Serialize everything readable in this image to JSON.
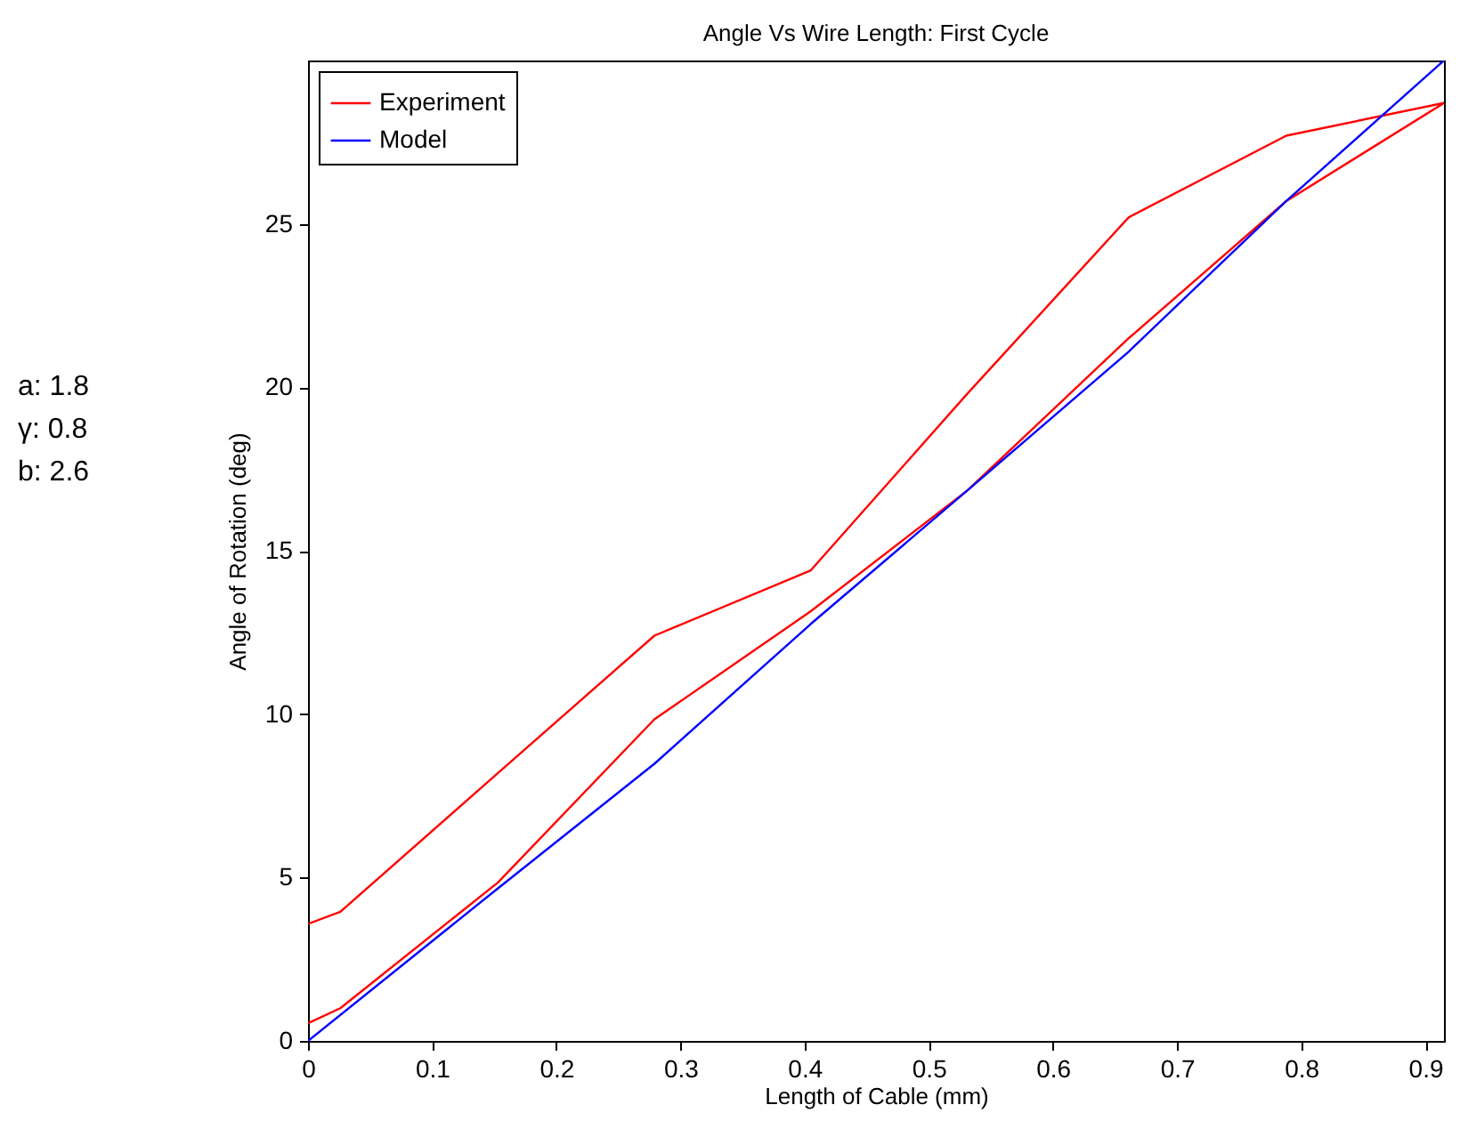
{
  "chart_data": {
    "type": "line",
    "title": "Angle Vs Wire Length: First Cycle",
    "xlabel": "Length of Cable (mm)",
    "ylabel": "Angle of Rotation (deg)",
    "annotations": [
      "a: 1.8",
      "γ: 0.8",
      "b: 2.6"
    ],
    "series": [
      {
        "name": "Experiment",
        "color": "#ff0000",
        "x": [
          0,
          0.026,
          0.153,
          0.279,
          0.405,
          0.531,
          0.661,
          0.788,
          0.915,
          0.788,
          0.661,
          0.531,
          0.405,
          0.279,
          0.153,
          0.026,
          0
        ],
        "values": [
          0.54,
          1.0,
          4.85,
          9.84,
          13.15,
          16.84,
          21.5,
          25.7,
          28.7,
          27.7,
          25.2,
          19.8,
          14.4,
          12.4,
          8.2,
          3.95,
          3.58
        ]
      },
      {
        "name": "Model",
        "color": "#0000ff",
        "x": [
          0,
          0.153,
          0.279,
          0.405,
          0.531,
          0.661,
          0.788,
          0.915
        ],
        "values": [
          0,
          4.67,
          8.48,
          12.76,
          16.84,
          21.09,
          25.7,
          30
        ]
      }
    ],
    "xlim": [
      0,
      0.915
    ],
    "xticks": [
      0,
      0.1,
      0.2,
      0.3,
      0.4,
      0.5,
      0.6,
      0.7,
      0.8,
      0.9
    ],
    "ylim": [
      0,
      30
    ],
    "yticks": [
      0,
      5,
      10,
      15,
      20,
      25
    ],
    "grid": false,
    "legend": "top left",
    "line_style": "solid",
    "marker": "none"
  }
}
